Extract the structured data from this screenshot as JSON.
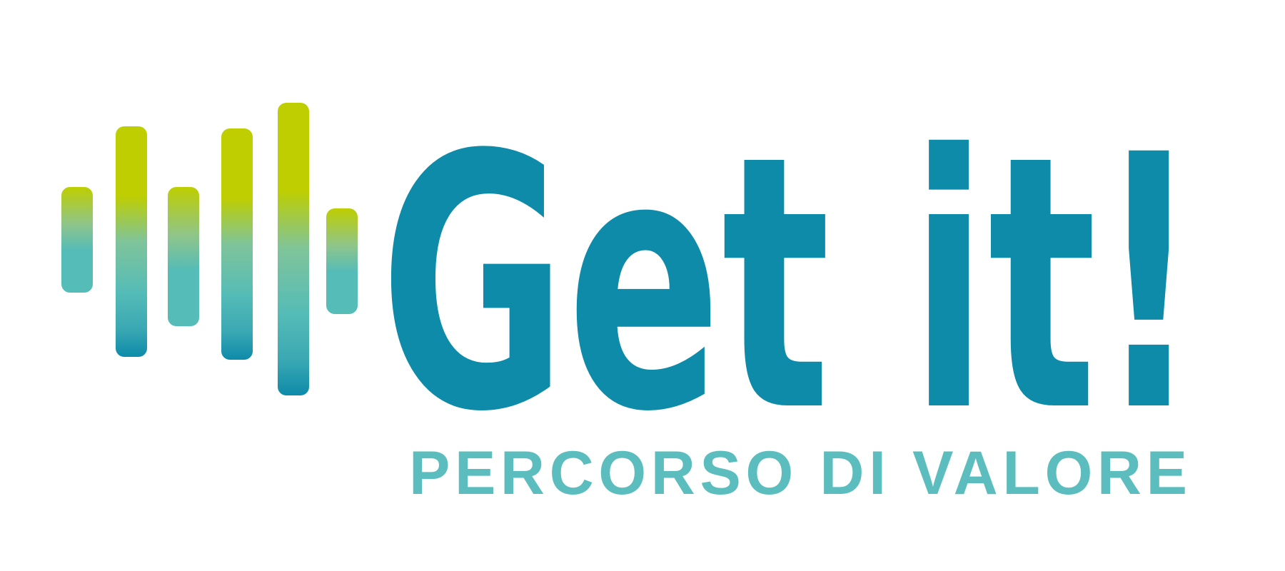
{
  "logo": {
    "wordmark": "Get it!",
    "tagline": "PERCORSO DI VALORE",
    "colors": {
      "primary": "#0d8ba9",
      "tagline": "#5bbdbd",
      "accent_lime": "#bece00",
      "accent_teal": "#55bcb7"
    },
    "equalizer_icon": "sound-bars-icon"
  }
}
